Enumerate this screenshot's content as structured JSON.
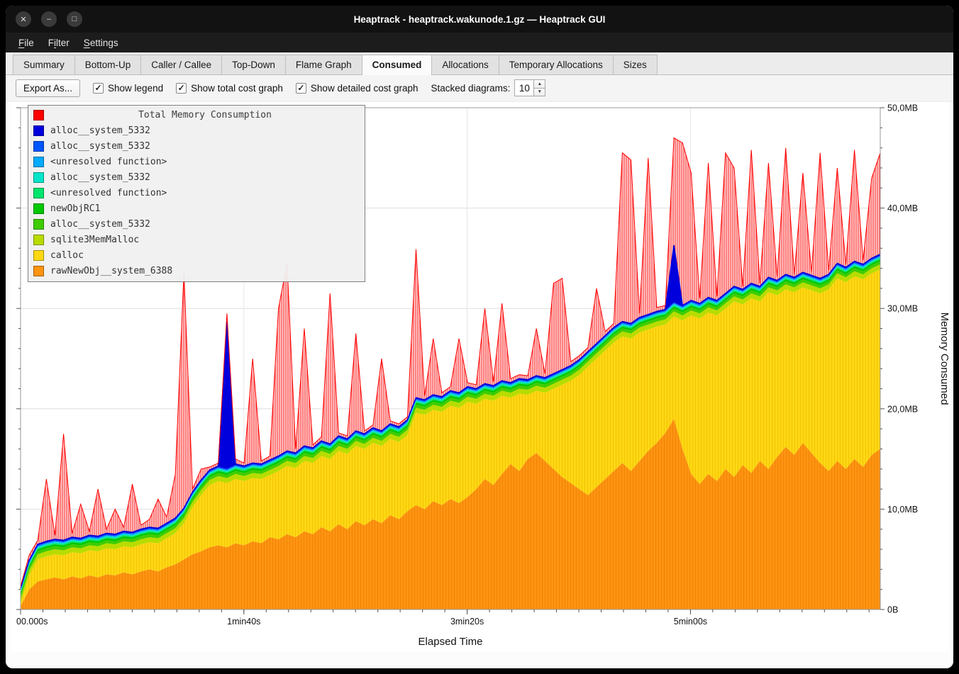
{
  "window": {
    "title": "Heaptrack - heaptrack.wakunode.1.gz — Heaptrack GUI",
    "controls": [
      {
        "name": "close",
        "glyph": "✕"
      },
      {
        "name": "minimize",
        "glyph": "–"
      },
      {
        "name": "maximize",
        "glyph": "□"
      }
    ]
  },
  "menubar": {
    "items": [
      {
        "label": "File",
        "underline": 0
      },
      {
        "label": "Filter",
        "underline": 1
      },
      {
        "label": "Settings",
        "underline": 0
      }
    ]
  },
  "tabs": {
    "items": [
      "Summary",
      "Bottom-Up",
      "Caller / Callee",
      "Top-Down",
      "Flame Graph",
      "Consumed",
      "Allocations",
      "Temporary Allocations",
      "Sizes"
    ],
    "active": "Consumed"
  },
  "toolbar": {
    "export_button": "Export As...",
    "checkboxes": [
      {
        "label": "Show legend",
        "checked": true
      },
      {
        "label": "Show total cost graph",
        "checked": true
      },
      {
        "label": "Show detailed cost graph",
        "checked": true
      }
    ],
    "stacked_label": "Stacked diagrams:",
    "stacked_value": "10"
  },
  "chart_data": {
    "type": "area",
    "stacked": true,
    "title": "Total Memory Consumption",
    "xlabel": "Elapsed Time",
    "ylabel": "Memory Consumed",
    "xlim": [
      0,
      385
    ],
    "ylim_mb": [
      0,
      50
    ],
    "x_ticks": [
      {
        "t": 0,
        "label": "00.000s"
      },
      {
        "t": 100,
        "label": "1min40s"
      },
      {
        "t": 200,
        "label": "3min20s"
      },
      {
        "t": 300,
        "label": "5min00s"
      }
    ],
    "y_ticks": [
      {
        "mb": 0,
        "label": "0B"
      },
      {
        "mb": 10,
        "label": "10,0MB"
      },
      {
        "mb": 20,
        "label": "20,0MB"
      },
      {
        "mb": 30,
        "label": "30,0MB"
      },
      {
        "mb": 40,
        "label": "40,0MB"
      },
      {
        "mb": 50,
        "label": "50,0MB"
      }
    ],
    "legend": [
      {
        "name": "Total Memory Consumption",
        "color": "#ff0000"
      },
      {
        "name": "alloc__system_5332",
        "color": "#0000dd"
      },
      {
        "name": "alloc__system_5332",
        "color": "#0055ff"
      },
      {
        "name": "<unresolved function>",
        "color": "#00aaff"
      },
      {
        "name": "alloc__system_5332",
        "color": "#00e5c8"
      },
      {
        "name": "<unresolved function>",
        "color": "#00e56e"
      },
      {
        "name": "newObjRC1",
        "color": "#00c800"
      },
      {
        "name": "alloc__system_5332",
        "color": "#3ecc00"
      },
      {
        "name": "sqlite3MemMalloc",
        "color": "#b8dc00"
      },
      {
        "name": "calloc",
        "color": "#ffd813"
      },
      {
        "name": "rawNewObj__system_6388",
        "color": "#ff9412"
      }
    ],
    "x_seconds": [
      0,
      3.85,
      7.7,
      11.55,
      15.4,
      19.25,
      23.1,
      26.95,
      30.8,
      34.65,
      38.5,
      42.35,
      46.2,
      50.05,
      53.9,
      57.75,
      61.6,
      65.45,
      69.3,
      73.15,
      77,
      80.85,
      84.7,
      88.55,
      92.4,
      96.25,
      100.1,
      103.95,
      107.8,
      111.65,
      115.5,
      119.35,
      123.2,
      127.05,
      130.9,
      134.75,
      138.6,
      142.45,
      146.3,
      150.15,
      154,
      157.85,
      161.7,
      165.55,
      169.4,
      173.25,
      177.1,
      180.95,
      184.8,
      188.65,
      192.5,
      196.35,
      200.2,
      204.05,
      207.9,
      211.75,
      215.6,
      219.45,
      223.3,
      227.15,
      231,
      234.85,
      238.7,
      242.55,
      246.4,
      250.25,
      254.1,
      257.95,
      261.8,
      265.65,
      269.5,
      273.35,
      277.2,
      281.05,
      284.9,
      288.75,
      292.6,
      296.45,
      300.3,
      304.15,
      308,
      311.85,
      315.7,
      319.55,
      323.4,
      327.25,
      331.1,
      334.95,
      338.8,
      342.65,
      346.5,
      350.35,
      354.2,
      358.05,
      361.9,
      365.75,
      369.6,
      373.45,
      377.3,
      381.15,
      385
    ],
    "series": [
      {
        "name": "rawNewObj__system_6388",
        "color": "#ff9412",
        "stripe": "#e87d00",
        "top_mb": [
          0.3,
          2.0,
          2.8,
          3.0,
          3.2,
          3.0,
          3.3,
          3.1,
          3.4,
          3.2,
          3.5,
          3.4,
          3.7,
          3.5,
          3.8,
          4.0,
          3.8,
          4.2,
          4.5,
          5.0,
          5.5,
          5.8,
          6.2,
          6.4,
          6.2,
          6.6,
          6.4,
          6.8,
          6.6,
          7.2,
          7.0,
          7.5,
          7.2,
          7.8,
          7.5,
          8.2,
          7.8,
          8.5,
          8.0,
          8.8,
          8.4,
          9.0,
          8.6,
          9.4,
          9.0,
          9.8,
          10.4,
          10.0,
          10.8,
          10.4,
          11.0,
          10.6,
          11.2,
          12.0,
          13.0,
          12.4,
          13.5,
          14.5,
          13.8,
          15.0,
          15.6,
          14.8,
          14.0,
          13.2,
          12.6,
          12.0,
          11.4,
          12.2,
          13.0,
          13.8,
          14.6,
          13.8,
          14.8,
          15.8,
          16.6,
          17.6,
          19.0,
          16.0,
          13.5,
          12.5,
          13.5,
          12.8,
          14.0,
          13.2,
          14.4,
          13.6,
          14.8,
          14.0,
          15.2,
          16.2,
          15.4,
          16.6,
          15.6,
          14.6,
          13.8,
          14.8,
          14.0,
          15.0,
          14.2,
          15.4,
          16.0
        ]
      },
      {
        "name": "calloc",
        "color": "#ffd813",
        "stripe": "#edb900",
        "top_mb": [
          0.6,
          3.4,
          5.0,
          5.3,
          5.5,
          5.4,
          5.7,
          5.6,
          5.9,
          5.8,
          6.1,
          6.0,
          6.3,
          6.2,
          6.5,
          6.7,
          6.6,
          7.1,
          7.6,
          8.6,
          10.2,
          11.4,
          12.4,
          12.8,
          12.6,
          13.0,
          12.8,
          13.1,
          13.0,
          13.4,
          13.8,
          14.3,
          14.1,
          14.8,
          14.6,
          15.3,
          15.0,
          15.8,
          15.5,
          16.3,
          16.0,
          16.6,
          16.3,
          17.0,
          16.7,
          17.4,
          19.6,
          19.4,
          19.9,
          19.7,
          20.3,
          20.1,
          20.7,
          20.5,
          21.0,
          20.8,
          21.3,
          21.1,
          21.5,
          21.4,
          21.8,
          21.6,
          22.0,
          22.4,
          22.8,
          23.4,
          24.2,
          25.0,
          25.8,
          26.6,
          27.2,
          27.0,
          27.6,
          27.9,
          28.2,
          28.4,
          29.2,
          28.8,
          29.3,
          29.0,
          29.6,
          29.3,
          30.0,
          30.7,
          30.4,
          31.0,
          30.7,
          31.6,
          31.3,
          31.9,
          31.6,
          32.1,
          31.8,
          31.5,
          31.9,
          33.0,
          32.6,
          33.2,
          32.9,
          33.5,
          33.9
        ]
      },
      {
        "name": "sqlite3MemMalloc",
        "color": "#b8dc00",
        "thickness_mb": 0.5
      },
      {
        "name": "alloc__system_5332",
        "color": "#3ecc00",
        "thickness_mb": 0.3
      },
      {
        "name": "newObjRC1",
        "color": "#00c800",
        "thickness_mb": 0.2
      },
      {
        "name": "<unresolved function>",
        "color": "#00e56e",
        "thickness_mb": 0.12
      },
      {
        "name": "alloc__system_5332",
        "color": "#00e5c8",
        "thickness_mb": 0.1
      },
      {
        "name": "<unresolved function>",
        "color": "#00aaff",
        "thickness_mb": 0.08
      },
      {
        "name": "alloc__system_5332",
        "color": "#0055ff",
        "thickness_mb": 0.1
      },
      {
        "name": "alloc__system_5332",
        "color": "#0000dd",
        "thickness_mb": 0.1
      }
    ],
    "stack_top_spikes": [
      {
        "index": 24,
        "mb": 28.7
      },
      {
        "index": 76,
        "mb": 36.3
      }
    ],
    "total": {
      "name": "Total Memory Consumption",
      "line_color": "#ff0000",
      "area_fill": "#ffc9c9",
      "area_hatch": "#ff3b3b",
      "values_mb": [
        2.3,
        5.4,
        6.9,
        13.0,
        7.4,
        17.5,
        7.6,
        10.5,
        7.8,
        12.0,
        8.0,
        10.0,
        8.2,
        12.5,
        8.4,
        9.0,
        11.0,
        9.2,
        13.5,
        33.6,
        12.0,
        14.0,
        14.2,
        14.6,
        29.5,
        15.0,
        14.6,
        25.0,
        14.8,
        15.3,
        30.0,
        34.5,
        16.0,
        28.0,
        16.4,
        17.2,
        31.5,
        17.6,
        17.3,
        27.5,
        17.8,
        18.4,
        25.0,
        18.8,
        18.5,
        19.2,
        35.9,
        21.3,
        27.0,
        21.6,
        22.2,
        27.0,
        22.6,
        22.4,
        30.0,
        22.7,
        30.5,
        23.0,
        23.4,
        23.3,
        28.0,
        23.5,
        32.5,
        33.0,
        24.7,
        25.3,
        26.1,
        32.0,
        27.7,
        28.5,
        45.5,
        44.8,
        29.5,
        45.0,
        30.1,
        30.3,
        47.0,
        46.5,
        43.5,
        31.0,
        44.5,
        31.2,
        45.5,
        44.0,
        32.2,
        45.8,
        32.5,
        44.5,
        33.2,
        46.0,
        33.4,
        43.5,
        33.6,
        45.5,
        33.8,
        44.0,
        34.4,
        45.8,
        34.8,
        43.0,
        45.5
      ]
    }
  }
}
